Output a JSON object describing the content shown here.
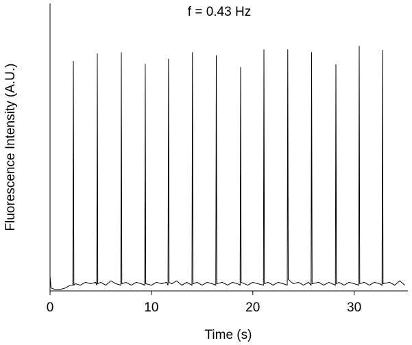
{
  "chart_data": {
    "type": "line",
    "annotation": "f = 0.43 Hz",
    "x_label": "Time (s)",
    "y_label": "Fluorescence Intensity (A.U.)",
    "xlim": [
      0,
      35.3
    ],
    "xticks": [
      0,
      10,
      20,
      30
    ],
    "ylim": [
      0,
      100
    ],
    "color": "#000000",
    "x": [
      0,
      0.1,
      0.5,
      1.0,
      1.5,
      2.0,
      2.25,
      2.3,
      2.35,
      2.5,
      3.0,
      3.5,
      4.0,
      4.5,
      4.61,
      4.66,
      4.71,
      5.0,
      5.5,
      6.0,
      6.5,
      6.98,
      7.03,
      7.08,
      7.5,
      8.0,
      8.5,
      9.0,
      9.34,
      9.39,
      9.44,
      10.0,
      10.5,
      11.0,
      11.5,
      11.64,
      11.69,
      11.74,
      12.0,
      12.5,
      13.0,
      13.5,
      14.0,
      14.05,
      14.1,
      14.5,
      15.0,
      15.5,
      16.0,
      16.35,
      16.4,
      16.45,
      17.0,
      17.5,
      18.0,
      18.5,
      18.75,
      18.8,
      18.85,
      19.5,
      20.0,
      20.5,
      21.05,
      21.1,
      21.15,
      21.5,
      22.0,
      22.5,
      23.0,
      23.4,
      23.45,
      23.5,
      24.0,
      24.5,
      25.0,
      25.5,
      25.75,
      25.8,
      25.85,
      26.5,
      27.0,
      27.5,
      28.15,
      28.2,
      28.25,
      28.5,
      29.0,
      29.5,
      30.0,
      30.45,
      30.5,
      30.55,
      31.0,
      31.5,
      32.0,
      32.5,
      32.75,
      32.8,
      32.85,
      33.5,
      34.0,
      34.5,
      35.0
    ],
    "values": [
      5,
      1,
      0.5,
      0.5,
      1,
      2,
      2,
      80,
      2,
      2.5,
      2,
      3,
      2.5,
      3,
      2,
      82.6,
      2.5,
      3,
      2,
      3.5,
      2.5,
      2,
      83,
      2.5,
      3,
      2,
      3,
      2.5,
      2,
      79,
      2.5,
      2,
      3,
      2.5,
      3,
      2,
      80.7,
      3,
      2.5,
      3.5,
      2,
      3,
      2,
      83,
      2.5,
      3,
      2,
      3,
      2.5,
      2,
      82,
      2.5,
      3,
      2,
      3,
      2.5,
      2,
      77.9,
      3,
      2,
      3,
      2.5,
      2,
      84,
      2.5,
      3,
      2,
      3,
      2.5,
      2,
      84,
      4,
      2.5,
      3,
      2,
      3,
      2,
      83,
      2.5,
      3,
      2,
      3,
      2,
      78.8,
      2.5,
      3,
      2,
      3,
      2.5,
      2,
      85.2,
      2.5,
      3,
      2,
      3,
      2.5,
      2,
      83.8,
      2.5,
      3,
      2,
      3.5,
      2
    ]
  }
}
